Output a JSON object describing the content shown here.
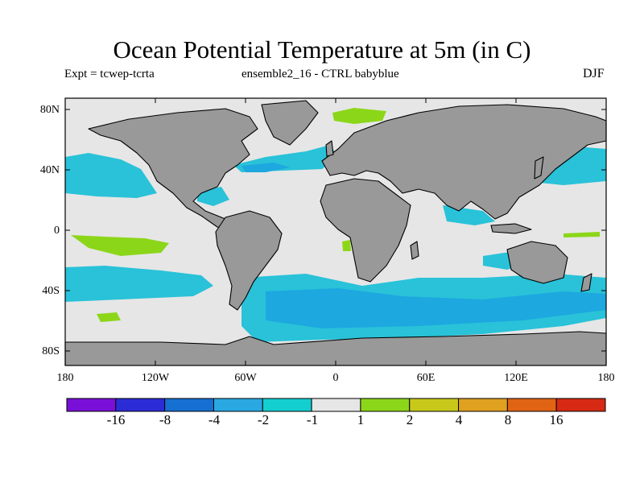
{
  "title": "Ocean Potential Temperature at 5m (in C)",
  "expt_label": "Expt = tcwep-tcrta",
  "ensemble_label": "ensemble2_16 - CTRL babyblue",
  "season": "DJF",
  "lat_ticks": [
    "80N",
    "40N",
    "0",
    "40S",
    "80S"
  ],
  "lon_ticks": [
    "180",
    "120W",
    "60W",
    "0",
    "60E",
    "120E",
    "180"
  ],
  "colorbar": {
    "labels": [
      "-16",
      "-8",
      "-4",
      "-2",
      "-1",
      "1",
      "2",
      "4",
      "8",
      "16"
    ],
    "colors": [
      "#7a10d8",
      "#2c2cd6",
      "#1670d2",
      "#29a8e2",
      "#13cfcf",
      "#e6e6e6",
      "#8cd61a",
      "#c8c81a",
      "#e0a020",
      "#e06414",
      "#d62a14"
    ]
  },
  "map_colors": {
    "ocean_neutral": "#e6e6e6",
    "land": "#999999",
    "cool": "#29c2d8",
    "cooler": "#1da8e0",
    "warm": "#8cd61a",
    "coast": "#000000"
  }
}
